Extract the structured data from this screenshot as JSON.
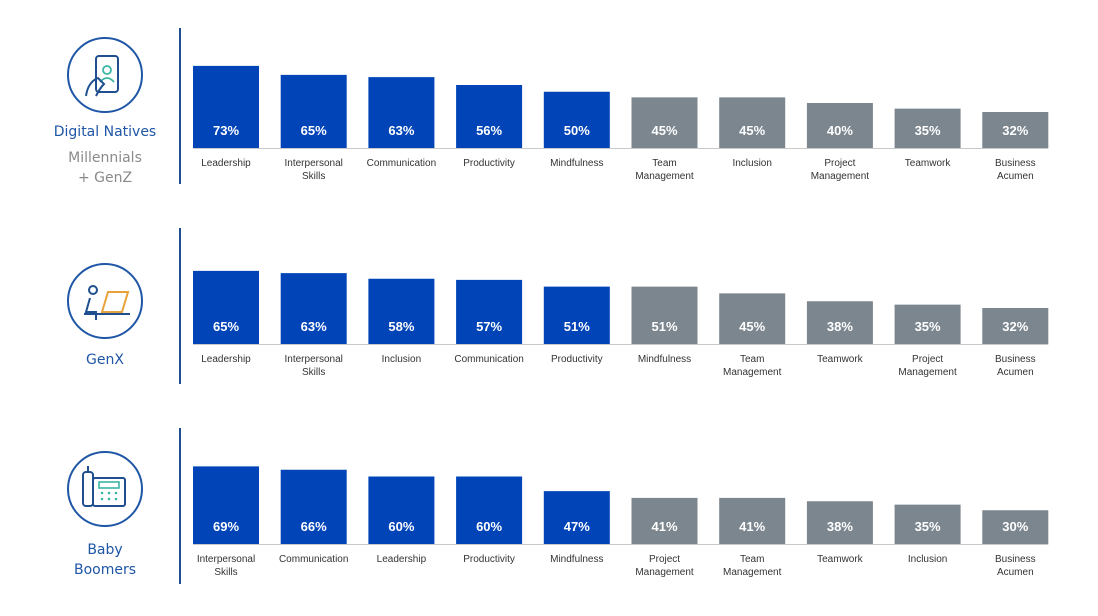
{
  "colors": {
    "blue": "#0044b8",
    "gray": "#7b868f",
    "accent": "#1f56a6",
    "baseline": "#c9c9c9"
  },
  "panels": [
    {
      "icon": "phone-hand-icon",
      "title": "Digital Natives",
      "subtitle": [
        "Millennials",
        "+ GenZ"
      ]
    },
    {
      "icon": "laptop-user-icon",
      "title": "GenX",
      "subtitle": []
    },
    {
      "icon": "desk-phone-icon",
      "title": "Baby",
      "title2": "Boomers",
      "subtitle": []
    }
  ],
  "chart_data": [
    {
      "type": "bar",
      "title": "",
      "categories": [
        "Leadership",
        "Interpersonal Skills",
        "Communication",
        "Productivity",
        "Mindfulness",
        "Team Management",
        "Inclusion",
        "Project Management",
        "Teamwork",
        "Business Acumen"
      ],
      "values": [
        73,
        65,
        63,
        56,
        50,
        45,
        45,
        40,
        35,
        32
      ],
      "value_labels": [
        "73%",
        "65%",
        "63%",
        "56%",
        "50%",
        "45%",
        "45%",
        "40%",
        "35%",
        "32%"
      ],
      "highlight_count": 5,
      "ylim": [
        0,
        100
      ]
    },
    {
      "type": "bar",
      "title": "",
      "categories": [
        "Leadership",
        "Interpersonal Skills",
        "Inclusion",
        "Communication",
        "Productivity",
        "Mindfulness",
        "Team Management",
        "Teamwork",
        "Project Management",
        "Business Acumen"
      ],
      "values": [
        65,
        63,
        58,
        57,
        51,
        51,
        45,
        38,
        35,
        32
      ],
      "value_labels": [
        "65%",
        "63%",
        "58%",
        "57%",
        "51%",
        "51%",
        "45%",
        "38%",
        "35%",
        "32%"
      ],
      "highlight_count": 5,
      "ylim": [
        0,
        100
      ]
    },
    {
      "type": "bar",
      "title": "",
      "categories": [
        "Interpersonal Skills",
        "Communication",
        "Leadership",
        "Productivity",
        "Mindfulness",
        "Project Management",
        "Team Management",
        "Teamwork",
        "Inclusion",
        "Business Acumen"
      ],
      "values": [
        69,
        66,
        60,
        60,
        47,
        41,
        41,
        38,
        35,
        30
      ],
      "value_labels": [
        "69%",
        "66%",
        "60%",
        "60%",
        "47%",
        "41%",
        "41%",
        "38%",
        "35%",
        "30%"
      ],
      "highlight_count": 5,
      "ylim": [
        0,
        100
      ]
    }
  ]
}
